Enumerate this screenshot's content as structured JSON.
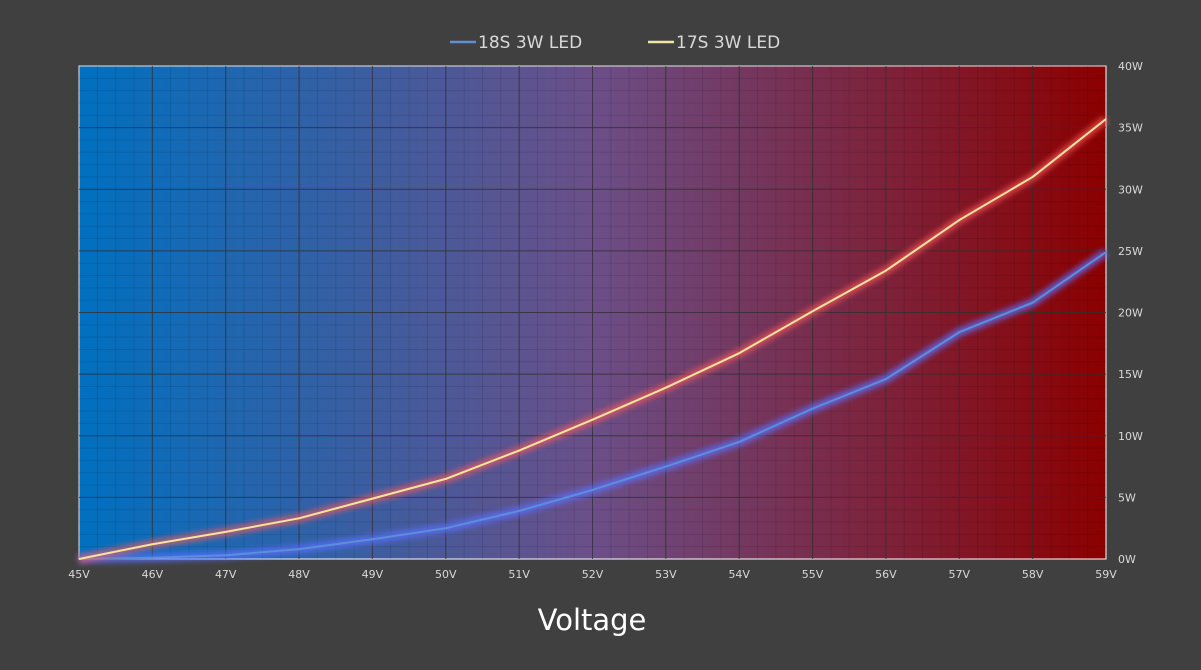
{
  "chart_data": {
    "type": "line",
    "xlabel": "Voltage",
    "ylabel": "",
    "categories": [
      "45V",
      "46V",
      "47V",
      "48V",
      "49V",
      "50V",
      "51V",
      "52V",
      "53V",
      "54V",
      "55V",
      "56V",
      "57V",
      "58V",
      "59V"
    ],
    "x": [
      45,
      46,
      47,
      48,
      49,
      50,
      51,
      52,
      53,
      54,
      55,
      56,
      57,
      58,
      59
    ],
    "y_ticks": [
      "0W",
      "5W",
      "10W",
      "15W",
      "20W",
      "25W",
      "30W",
      "35W",
      "40W"
    ],
    "ylim": [
      0,
      40
    ],
    "y_axis_side": "right",
    "grid": true,
    "legend_position": "top",
    "background_gradient": [
      "#0070c0",
      "#8b0000"
    ],
    "series": [
      {
        "name": "18S 3W LED",
        "color": "#5b8fd6",
        "values": [
          0,
          0.1,
          0.3,
          0.8,
          1.6,
          2.5,
          3.9,
          5.6,
          7.5,
          9.5,
          12.2,
          14.6,
          18.4,
          20.8,
          24.9
        ]
      },
      {
        "name": "17S 3W LED",
        "color": "#f0e6a0",
        "values": [
          0,
          1.2,
          2.2,
          3.3,
          4.9,
          6.5,
          8.8,
          11.3,
          13.9,
          16.7,
          20.1,
          23.4,
          27.5,
          31.0,
          35.7
        ]
      }
    ]
  }
}
